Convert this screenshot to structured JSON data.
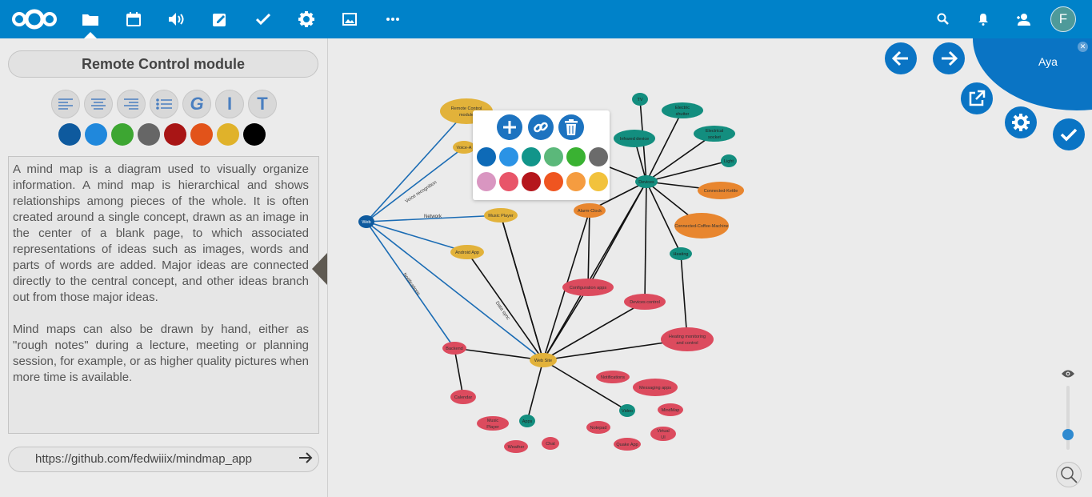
{
  "topbar": {
    "avatar_letter": "F",
    "apps": [
      "files-icon",
      "calendar-icon",
      "audio-icon",
      "notes-icon",
      "tasks-icon",
      "settings-icon",
      "gallery-icon",
      "more-icon"
    ]
  },
  "sidebar": {
    "title": "Remote Control module",
    "format_buttons": [
      "align-left",
      "align-center",
      "align-right",
      "list",
      "bold",
      "italic",
      "text"
    ],
    "bold_label": "G",
    "italic_label": "I",
    "text_label": "T",
    "colors": [
      "#0e5a9e",
      "#2088dc",
      "#3da632",
      "#666666",
      "#a81515",
      "#e2531a",
      "#e0b22a",
      "#000000"
    ],
    "description_p1": "A mind map is a diagram used to visually organize information. A mind map is hierarchical and shows relationships among pieces of the whole. It is often created around a single concept, drawn as an image in the center of a blank page, to which associated representations of ideas such as images, words and parts of words are added. Major ideas are connected directly to the central concept, and other ideas branch out from those major ideas.",
    "description_p2": "Mind maps can also be drawn by hand, either as \"rough notes\" during a lecture, meeting or planning session, for example, or as higher quality pictures when more time is available.",
    "url": "https://github.com/fedwiiix/mindmap_app"
  },
  "popup": {
    "colors_row1": [
      "#0e6ab7",
      "#2b93e5",
      "#12958a",
      "#5bb87a",
      "#3ab232",
      "#6b6b6b"
    ],
    "colors_row2": [
      "#d996c1",
      "#e85569",
      "#b5161c",
      "#ef5520",
      "#f59c40",
      "#f2c23c"
    ]
  },
  "user": {
    "name": "Aya"
  },
  "mindmap": {
    "nodes": [
      {
        "id": "root",
        "label": "Web",
        "color": "#0e5a9e",
        "text": "#fff"
      },
      {
        "id": "remote",
        "label": "Remote Control module",
        "color": "#e2b23a",
        "text": "#333"
      },
      {
        "id": "voice",
        "label": "Voice-A",
        "color": "#e2b23a",
        "text": "#333"
      },
      {
        "id": "music",
        "label": "Music Player",
        "color": "#e2b23a",
        "text": "#333"
      },
      {
        "id": "android",
        "label": "Android App",
        "color": "#e2b23a",
        "text": "#333"
      },
      {
        "id": "website",
        "label": "Web Site",
        "color": "#e2b23a",
        "text": "#333"
      },
      {
        "id": "alarm",
        "label": "Alarm-Clock",
        "color": "#e8862f",
        "text": "#333"
      },
      {
        "id": "kettle",
        "label": "Connected-Kettle",
        "color": "#e8862f",
        "text": "#333"
      },
      {
        "id": "coffee",
        "label": "Connected-Coffee-Machine",
        "color": "#e8862f",
        "text": "#333"
      },
      {
        "id": "devices",
        "label": "Devices",
        "color": "#138e7f",
        "text": "#222"
      },
      {
        "id": "tv",
        "label": "TV",
        "color": "#138e7f",
        "text": "#222"
      },
      {
        "id": "shutter",
        "label": "Electric shutter",
        "color": "#138e7f",
        "text": "#222"
      },
      {
        "id": "infrared",
        "label": "Infrared device",
        "color": "#138e7f",
        "text": "#222"
      },
      {
        "id": "socket",
        "label": "Electrical socket",
        "color": "#138e7f",
        "text": "#222"
      },
      {
        "id": "light",
        "label": "Light",
        "color": "#138e7f",
        "text": "#222"
      },
      {
        "id": "heating",
        "label": "Heating",
        "color": "#138e7f",
        "text": "#222"
      },
      {
        "id": "config",
        "label": "Configuration apps",
        "color": "#dc4b5e",
        "text": "#333"
      },
      {
        "id": "devctrl",
        "label": "Devices control",
        "color": "#dc4b5e",
        "text": "#333"
      },
      {
        "id": "heatmon",
        "label": "Heating monitoring and control",
        "color": "#dc4b5e",
        "text": "#333"
      },
      {
        "id": "backend",
        "label": "Backend",
        "color": "#dc4b5e",
        "text": "#333"
      },
      {
        "id": "calendar",
        "label": "Calendar",
        "color": "#dc4b5e",
        "text": "#333"
      },
      {
        "id": "notif",
        "label": "Notifications",
        "color": "#dc4b5e",
        "text": "#333"
      },
      {
        "id": "messaging",
        "label": "Messaging apps",
        "color": "#dc4b5e",
        "text": "#333"
      },
      {
        "id": "mindmap",
        "label": "MindMap",
        "color": "#dc4b5e",
        "text": "#333"
      },
      {
        "id": "notepad",
        "label": "Notepad",
        "color": "#dc4b5e",
        "text": "#333"
      },
      {
        "id": "virtualui",
        "label": "Virtual UI",
        "color": "#dc4b5e",
        "text": "#333"
      },
      {
        "id": "quake",
        "label": "Quake App",
        "color": "#dc4b5e",
        "text": "#333"
      },
      {
        "id": "musicpl2",
        "label": "Music Player",
        "color": "#dc4b5e",
        "text": "#333"
      },
      {
        "id": "weather",
        "label": "Weather",
        "color": "#dc4b5e",
        "text": "#333"
      },
      {
        "id": "chat",
        "label": "Chat",
        "color": "#dc4b5e",
        "text": "#333"
      },
      {
        "id": "video",
        "label": "Video",
        "color": "#138e7f",
        "text": "#222"
      },
      {
        "id": "apps",
        "label": "Apps",
        "color": "#138e7f",
        "text": "#222"
      }
    ],
    "edge_labels": [
      "Voice recognition",
      "Network",
      "Notifications",
      "Data sync"
    ]
  }
}
